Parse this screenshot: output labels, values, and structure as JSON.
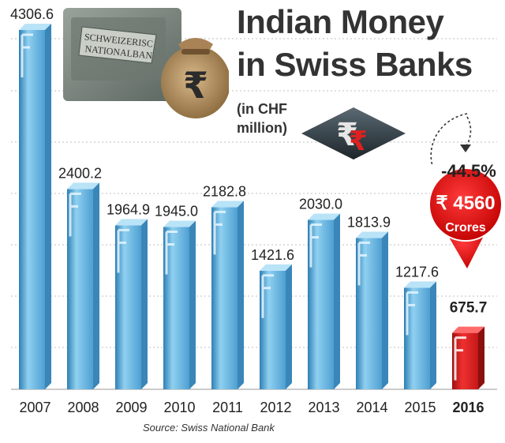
{
  "title": [
    "Indian Money",
    "in Swiss Banks"
  ],
  "unit": [
    "(in CHF",
    "million)"
  ],
  "source": "Source: Swiss National Bank",
  "photo_sign": [
    "SCHWEIZERISC",
    "NATIONALBAN"
  ],
  "callout": {
    "change": "-44.5%",
    "amount": "₹ 4560",
    "unit": "Crores"
  },
  "colors": {
    "bar": "#7cc4e8",
    "bar_dark": "#3a86b8",
    "highlight": "#e02020",
    "highlight_dark": "#8a0f0f",
    "text": "#222222"
  },
  "icons": [
    "money-bag-icon",
    "rupee-logo-icon",
    "swiss-bank-building-photo"
  ],
  "chart_data": {
    "type": "bar",
    "categories": [
      "2007",
      "2008",
      "2009",
      "2010",
      "2011",
      "2012",
      "2013",
      "2014",
      "2015",
      "2016"
    ],
    "values": [
      4306.6,
      2400.2,
      1964.9,
      1945.0,
      2182.8,
      1421.6,
      2030.0,
      1813.9,
      1217.6,
      675.7
    ],
    "labels": [
      "4306.6",
      "2400.2",
      "1964.9",
      "1945.0",
      "2182.8",
      "1421.6",
      "2030.0",
      "1813.9",
      "1217.6",
      "675.7"
    ],
    "highlight_category": "2016",
    "title": "Indian Money in Swiss Banks",
    "ylabel": "(in CHF million)",
    "ylim": [
      0,
      4306.6
    ],
    "grid": true
  }
}
